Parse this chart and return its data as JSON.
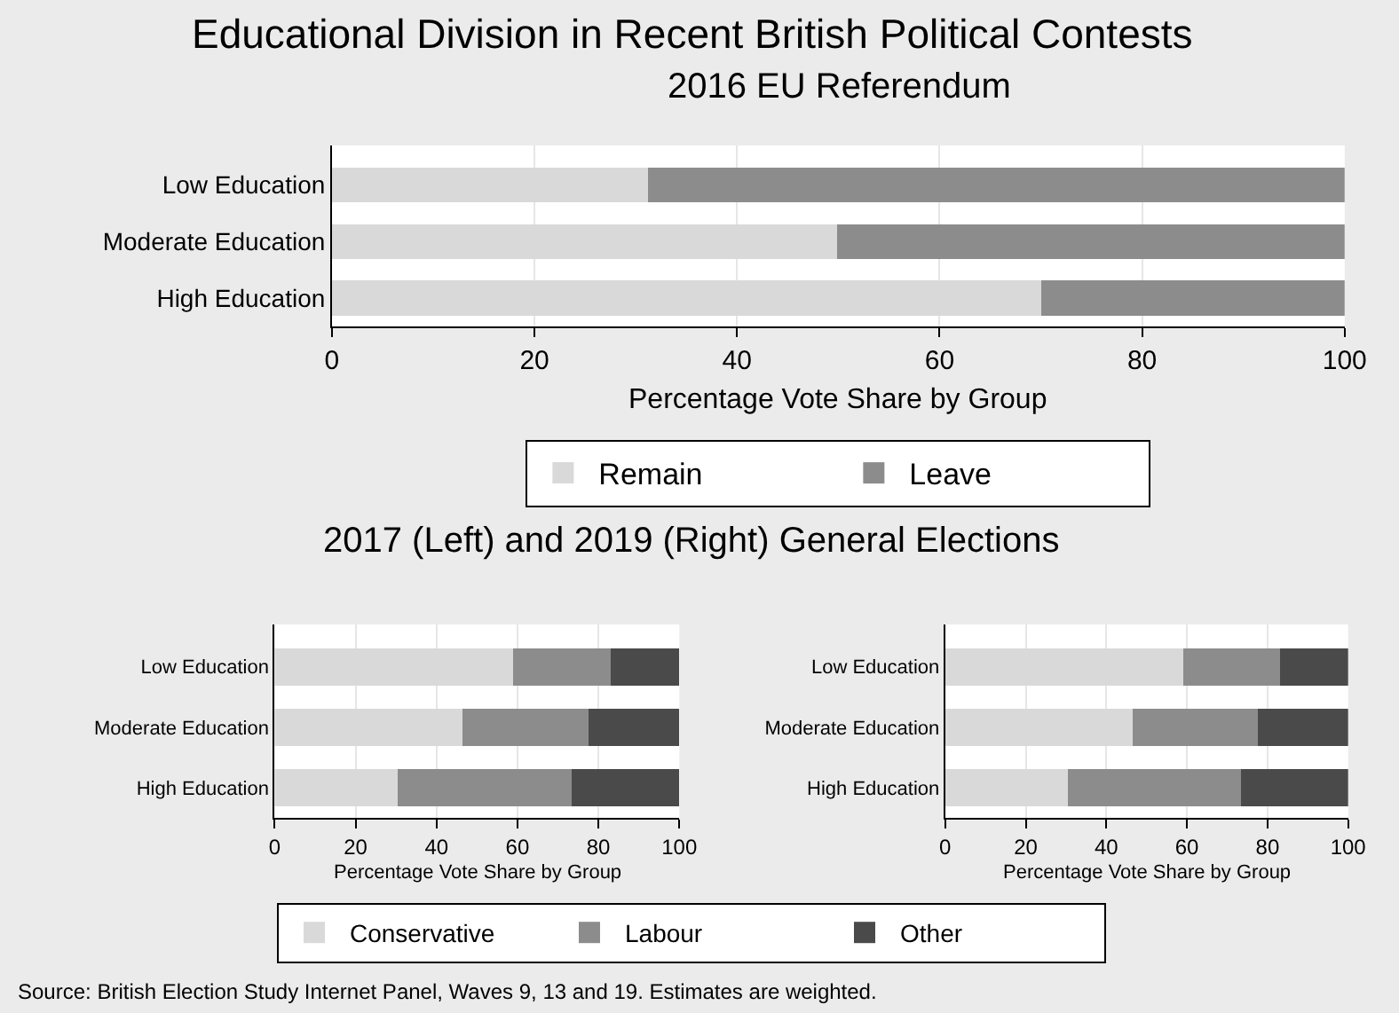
{
  "chart_data": [
    {
      "type": "bar",
      "orientation": "horizontal",
      "stacked": true,
      "title": "Educational Division in Recent British Political Contests",
      "subtitle": "2016 EU Referendum",
      "xlabel": "Percentage Vote Share by Group",
      "categories": [
        "Low Education",
        "Moderate Education",
        "High Education"
      ],
      "xlim": [
        0,
        100
      ],
      "xticks": [
        0,
        20,
        40,
        60,
        80,
        100
      ],
      "grid": "x",
      "legend": "bottom",
      "series": [
        {
          "name": "Remain",
          "color": "#d9d9d9",
          "values": [
            31.2,
            49.9,
            70.0
          ]
        },
        {
          "name": "Leave",
          "color": "#8c8c8c",
          "values": [
            68.8,
            50.1,
            30.0
          ]
        }
      ]
    },
    {
      "type": "bar",
      "orientation": "horizontal",
      "stacked": true,
      "title": "2017 (Left) and 2019 (Right) General Elections",
      "xlabel": "Percentage Vote Share by Group",
      "categories": [
        "Low Education",
        "Moderate Education",
        "High Education"
      ],
      "xlim": [
        0,
        100
      ],
      "xticks": [
        0,
        20,
        40,
        60,
        80,
        100
      ],
      "grid": "x",
      "legend": "bottom",
      "series": [
        {
          "name": "Conservative",
          "color": "#d9d9d9",
          "values": [
            59,
            46.5,
            30.5
          ]
        },
        {
          "name": "Labour",
          "color": "#8c8c8c",
          "values": [
            24,
            31,
            43
          ]
        },
        {
          "name": "Other",
          "color": "#4a4a4a",
          "values": [
            17,
            22.5,
            26.5
          ]
        }
      ]
    },
    {
      "type": "bar",
      "orientation": "horizontal",
      "stacked": true,
      "xlabel": "Percentage Vote Share by Group",
      "categories": [
        "Low Education",
        "Moderate Education",
        "High Education"
      ],
      "xlim": [
        0,
        100
      ],
      "xticks": [
        0,
        20,
        40,
        60,
        80,
        100
      ],
      "grid": "x",
      "annotations": [
        "Source: British Election Study Internet Panel, Waves 9, 13 and 19. Estimates are weighted."
      ],
      "series": [
        {
          "color": "#d9d9d9",
          "values": [
            59,
            46.5,
            30.5
          ]
        },
        {
          "color": "#8c8c8c",
          "values": [
            24,
            31,
            43
          ]
        },
        {
          "color": "#4a4a4a",
          "values": [
            17,
            22.5,
            26.5
          ]
        }
      ]
    }
  ]
}
